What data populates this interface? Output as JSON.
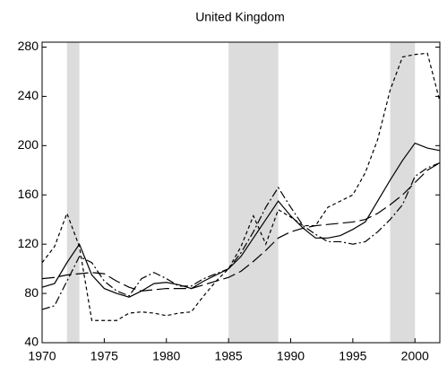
{
  "chart_data": {
    "type": "line",
    "title": "United Kingdom",
    "x": [
      1970,
      1971,
      1972,
      1973,
      1974,
      1975,
      1976,
      1977,
      1978,
      1979,
      1980,
      1981,
      1982,
      1983,
      1984,
      1985,
      1986,
      1987,
      1988,
      1989,
      1990,
      1991,
      1992,
      1993,
      1994,
      1995,
      1996,
      1997,
      1998,
      1999,
      2000,
      2001,
      2002
    ],
    "xlim": [
      1970,
      2002
    ],
    "xticks": [
      1970,
      1975,
      1980,
      1985,
      1990,
      1995,
      2000
    ],
    "ylim": [
      40,
      284
    ],
    "yticks": [
      40,
      80,
      120,
      160,
      200,
      240,
      280
    ],
    "shaded_periods": [
      [
        1972,
        1973
      ],
      [
        1985,
        1989
      ],
      [
        1998,
        2000
      ]
    ],
    "shade_color": "#dcdcdc",
    "series": [
      {
        "color": "#000000",
        "dash": "none",
        "values": [
          85,
          88,
          105,
          120,
          95,
          84,
          80,
          77,
          82,
          88,
          89,
          87,
          84,
          90,
          95,
          100,
          110,
          125,
          140,
          155,
          143,
          133,
          125,
          125,
          127,
          132,
          138,
          155,
          172,
          188,
          202,
          198,
          196
        ]
      },
      {
        "color": "#000000",
        "dash": "14 5",
        "values": [
          92,
          93,
          95,
          96,
          97,
          96,
          90,
          85,
          82,
          83,
          84,
          84,
          84,
          87,
          90,
          93,
          98,
          106,
          115,
          125,
          130,
          133,
          135,
          136,
          137,
          138,
          140,
          145,
          152,
          160,
          170,
          180,
          186
        ]
      },
      {
        "color": "#000000",
        "dash": "4 3",
        "values": [
          105,
          118,
          145,
          118,
          58,
          58,
          58,
          64,
          65,
          64,
          62,
          64,
          65,
          78,
          90,
          100,
          118,
          143,
          120,
          148,
          142,
          135,
          135,
          150,
          155,
          160,
          178,
          205,
          245,
          272,
          274,
          275,
          236
        ]
      },
      {
        "color": "#000000",
        "dash": "9 3 2 3",
        "values": [
          67,
          70,
          90,
          110,
          105,
          90,
          82,
          78,
          92,
          97,
          92,
          86,
          86,
          92,
          96,
          100,
          113,
          130,
          150,
          166,
          150,
          135,
          128,
          122,
          122,
          120,
          122,
          130,
          140,
          152,
          175,
          182,
          186
        ]
      }
    ]
  }
}
